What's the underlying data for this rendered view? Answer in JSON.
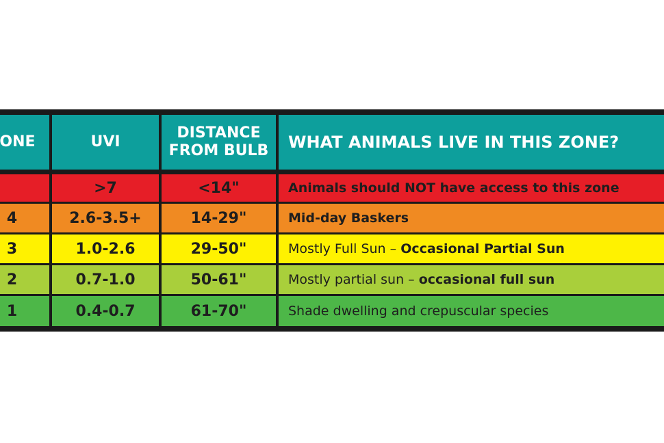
{
  "headers": {
    "zone": "ZONE",
    "uvi": "UVI",
    "distance_line1": "DISTANCE",
    "distance_line2": "FROM BULB",
    "animals": "WHAT ANIMALS LIVE IN THIS ZONE?"
  },
  "rows": [
    {
      "zone": "",
      "uvi": ">7",
      "distance": "<14\"",
      "desc_plain": "",
      "desc_bold": "Animals should NOT have access to this zone",
      "color": "#e61e27"
    },
    {
      "zone": "4",
      "uvi": "2.6-3.5+",
      "distance": "14-29\"",
      "desc_plain": "",
      "desc_bold": "Mid-day Baskers",
      "color": "#f08a22"
    },
    {
      "zone": "3",
      "uvi": "1.0-2.6",
      "distance": "29-50\"",
      "desc_plain": "Mostly Full Sun – ",
      "desc_bold": "Occasional Partial Sun",
      "color": "#fff200"
    },
    {
      "zone": "2",
      "uvi": "0.7-1.0",
      "distance": "50-61\"",
      "desc_plain": "Mostly partial sun – ",
      "desc_bold": "occasional full sun",
      "color": "#a9cf3b"
    },
    {
      "zone": "1",
      "uvi": "0.4-0.7",
      "distance": "61-70\"",
      "desc_plain": "Shade dwelling and crepuscular species",
      "desc_bold": "",
      "color": "#4db748"
    }
  ],
  "colors": {
    "header": "#0d9f9c",
    "border": "#1a1a1a"
  }
}
